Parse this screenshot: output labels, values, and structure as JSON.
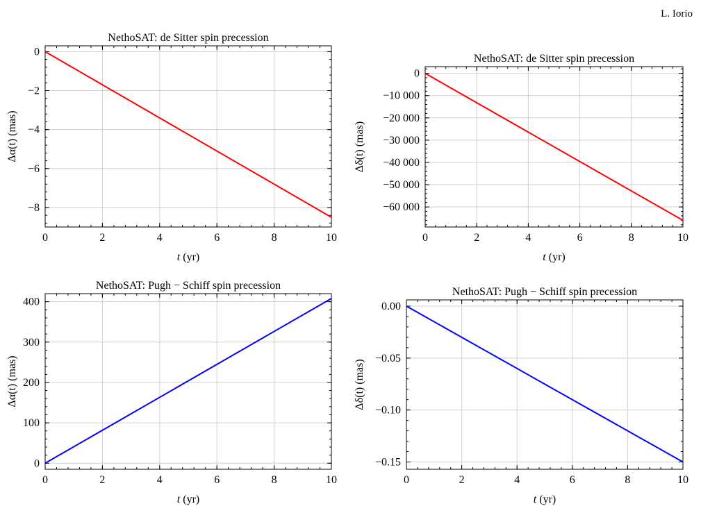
{
  "header": {
    "author": "L. Iorio"
  },
  "chart_data": [
    {
      "type": "line",
      "title": "NethoSAT: de Sitter spin precession",
      "xlabel": "t (yr)",
      "ylabel": "Δα(t)  (mas)",
      "xlim": [
        0,
        10
      ],
      "ylim": [
        -9,
        0.3
      ],
      "x_ticks": [
        0,
        2,
        4,
        6,
        8,
        10
      ],
      "x_tick_labels": [
        "0",
        "2",
        "4",
        "6",
        "8",
        "10"
      ],
      "y_ticks": [
        0,
        -2,
        -4,
        -6,
        -8
      ],
      "y_tick_labels": [
        "0",
        "−2",
        "−4",
        "−6",
        "−8"
      ],
      "grid": true,
      "series": [
        {
          "color": "#ff0000",
          "x": [
            0,
            10
          ],
          "y": [
            0,
            -8.5
          ]
        }
      ]
    },
    {
      "type": "line",
      "title": "NethoSAT: de Sitter spin precession",
      "xlabel": "t (yr)",
      "ylabel": "Δδ(t)  (mas)",
      "xlim": [
        0,
        10
      ],
      "ylim": [
        -69000,
        3000
      ],
      "x_ticks": [
        0,
        2,
        4,
        6,
        8,
        10
      ],
      "x_tick_labels": [
        "0",
        "2",
        "4",
        "6",
        "8",
        "10"
      ],
      "y_ticks": [
        0,
        -10000,
        -20000,
        -30000,
        -40000,
        -50000,
        -60000
      ],
      "y_tick_labels": [
        "0",
        "−10 000",
        "−20 000",
        "−30 000",
        "−40 000",
        "−50 000",
        "−60 000"
      ],
      "grid": true,
      "series": [
        {
          "color": "#ff0000",
          "x": [
            0,
            10
          ],
          "y": [
            0,
            -66000
          ]
        }
      ]
    },
    {
      "type": "line",
      "title": "NethoSAT: Pugh − Schiff spin precession",
      "xlabel": "t (yr)",
      "ylabel": "Δα(t)  (mas)",
      "xlim": [
        0,
        10
      ],
      "ylim": [
        -15,
        420
      ],
      "x_ticks": [
        0,
        2,
        4,
        6,
        8,
        10
      ],
      "x_tick_labels": [
        "0",
        "2",
        "4",
        "6",
        "8",
        "10"
      ],
      "y_ticks": [
        0,
        100,
        200,
        300,
        400
      ],
      "y_tick_labels": [
        "0",
        "100",
        "200",
        "300",
        "400"
      ],
      "grid": true,
      "series": [
        {
          "color": "#0000ff",
          "x": [
            0,
            10
          ],
          "y": [
            0,
            408
          ]
        }
      ]
    },
    {
      "type": "line",
      "title": "NethoSAT: Pugh − Schiff spin precession",
      "xlabel": "t (yr)",
      "ylabel": "Δδ(t)  (mas)",
      "xlim": [
        0,
        10
      ],
      "ylim": [
        -0.157,
        0.006
      ],
      "x_ticks": [
        0,
        2,
        4,
        6,
        8,
        10
      ],
      "x_tick_labels": [
        "0",
        "2",
        "4",
        "6",
        "8",
        "10"
      ],
      "y_ticks": [
        0,
        -0.05,
        -0.1,
        -0.15
      ],
      "y_tick_labels": [
        "0.00",
        "−0.05",
        "−0.10",
        "−0.15"
      ],
      "grid": true,
      "series": [
        {
          "color": "#0000ff",
          "x": [
            0,
            10
          ],
          "y": [
            0,
            -0.15
          ]
        }
      ]
    }
  ]
}
